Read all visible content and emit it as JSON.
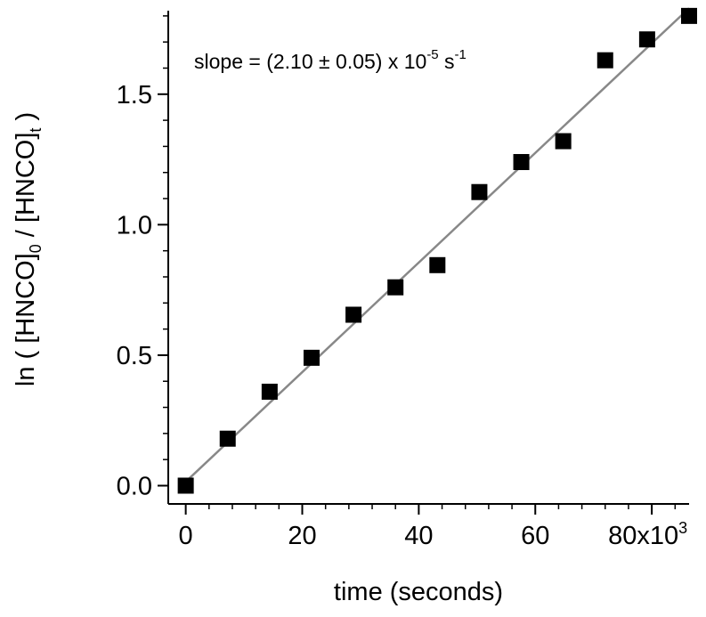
{
  "chart_data": {
    "type": "scatter",
    "xlabel": "time (seconds)",
    "ylabel_parts": {
      "prefix": "ln ( [HNCO]",
      "sub0": "0",
      "middle": " / [HNCO]",
      "subt": "t",
      "suffix": " )"
    },
    "x_tick_labels": [
      "0",
      "20",
      "40",
      "60",
      "80x10"
    ],
    "x_tick_values": [
      0,
      20000,
      40000,
      60000,
      80000
    ],
    "x_exponent_label": "3",
    "y_tick_labels": [
      "0.0",
      "0.5",
      "1.0",
      "1.5"
    ],
    "y_tick_values": [
      0,
      0.5,
      1.0,
      1.5
    ],
    "xlim": [
      -3000,
      86400
    ],
    "ylim": [
      -0.07,
      1.82
    ],
    "annotation": {
      "text_main": "slope = (2.10 ± 0.05) x 10",
      "exp1": "-5",
      "text_unit": " s",
      "exp2": "-1"
    },
    "series": [
      {
        "marker": "square",
        "color": "#000000",
        "x": [
          0,
          7200,
          14400,
          21600,
          28800,
          36000,
          43200,
          50400,
          57600,
          64800,
          72000,
          79200,
          86400
        ],
        "y": [
          0.0,
          0.18,
          0.36,
          0.49,
          0.655,
          0.76,
          0.845,
          1.125,
          1.24,
          1.32,
          1.63,
          1.71,
          1.8
        ]
      }
    ],
    "fit_line": {
      "color": "#888888",
      "slope": 2.1e-05,
      "intercept": 0.015,
      "x_range": [
        0,
        86400
      ]
    },
    "grid": false
  }
}
